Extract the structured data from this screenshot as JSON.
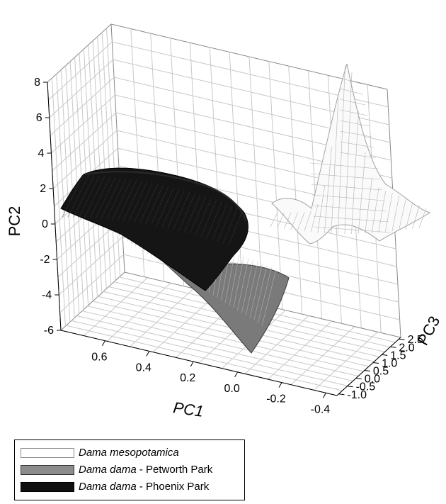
{
  "chart_data": {
    "type": "surface3d",
    "axes": {
      "x": {
        "label": "PC1",
        "range": [
          0.8,
          -0.45
        ],
        "ticks": [
          "0.6",
          "0.4",
          "0.2",
          "0.0",
          "-0.2",
          "-0.4"
        ],
        "tick_values": [
          0.6,
          0.4,
          0.2,
          0.0,
          -0.2,
          -0.4
        ]
      },
      "y": {
        "label": "PC2",
        "range": [
          -6,
          8
        ],
        "ticks": [
          "-6",
          "-4",
          "-2",
          "0",
          "2",
          "4",
          "6",
          "8"
        ],
        "tick_values": [
          -6,
          -4,
          -2,
          0,
          2,
          4,
          6,
          8
        ]
      },
      "z": {
        "label": "PC3",
        "range": [
          -1.1,
          2.6
        ],
        "ticks": [
          "-1.0",
          "-0.5",
          "0.0",
          "0.5",
          "1.0",
          "1.5",
          "2.0",
          "2.5"
        ],
        "tick_values": [
          -1.0,
          -0.5,
          0.0,
          0.5,
          1.0,
          1.5,
          2.0,
          2.5
        ]
      }
    },
    "grid": true,
    "legend_position": "bottom-left",
    "series": [
      {
        "name_species": "Dama mesopotamica",
        "name_population": "",
        "color": "#ffffff",
        "edge": "#9a9a9a",
        "description_role": "density surface plotted on back wall (PC2 vs PC3)"
      },
      {
        "name_species": "Dama dama",
        "name_population": " - Petworth Park",
        "color": "#8c8c8c",
        "edge": "#4a4a4a"
      },
      {
        "name_species": "Dama dama",
        "name_population": " - Phoenix Park",
        "color": "#111111",
        "edge": "#000000"
      }
    ]
  }
}
